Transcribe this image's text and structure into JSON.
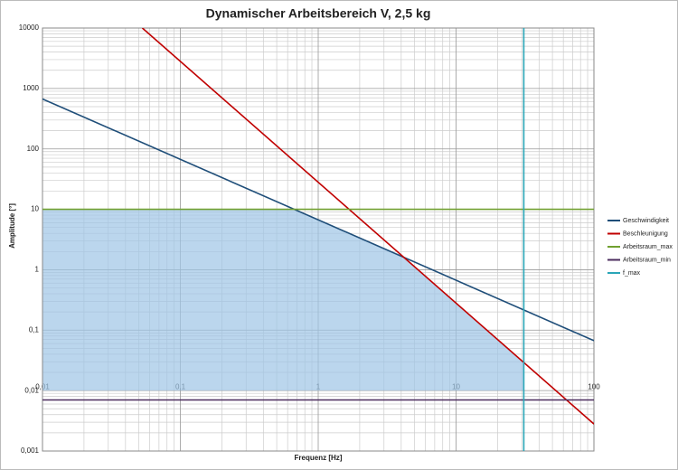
{
  "chart_data": {
    "type": "line",
    "title": "Dynamischer Arbeitsbereich V, 2,5 kg",
    "x_label": "Frequenz [Hz]",
    "y_label": "Amplitude [°]",
    "log_x": true,
    "log_y": true,
    "grid": true,
    "minor_grid": true,
    "legend": "right",
    "x_axis_at": 0.01,
    "xlim": [
      0.01,
      100
    ],
    "ylim": [
      0.001,
      10000
    ],
    "xticks": [
      {
        "value": 0.01,
        "label": "0,01"
      },
      {
        "value": 0.1,
        "label": "0,1"
      },
      1,
      10,
      100
    ],
    "yticks": [
      {
        "value": 0.001,
        "label": "0,001"
      },
      {
        "value": 0.01,
        "label": "0,01"
      },
      {
        "value": 0.1,
        "label": "0,1"
      },
      1,
      10,
      100,
      1000,
      10000
    ],
    "series": [
      {
        "name": "Geschwindigkeit",
        "color": "#1f4e79",
        "x": [
          0.01,
          100
        ],
        "values": [
          670,
          0.067
        ]
      },
      {
        "name": "Beschleunigung",
        "color": "#c00000",
        "x": [
          0.053,
          100
        ],
        "values": [
          10000,
          0.0028
        ]
      },
      {
        "name": "Arbeitsraum_max",
        "color": "#70a030",
        "x": [
          0.01,
          100
        ],
        "values": [
          10,
          10
        ]
      },
      {
        "name": "Arbeitsraum_min",
        "color": "#4b2c5e",
        "x": [
          0.01,
          100
        ],
        "values": [
          0.007,
          0.007
        ]
      },
      {
        "name": "f_max",
        "color": "#2aa6b8",
        "x": [
          31,
          31
        ],
        "values": [
          0.001,
          10000
        ]
      }
    ]
  }
}
